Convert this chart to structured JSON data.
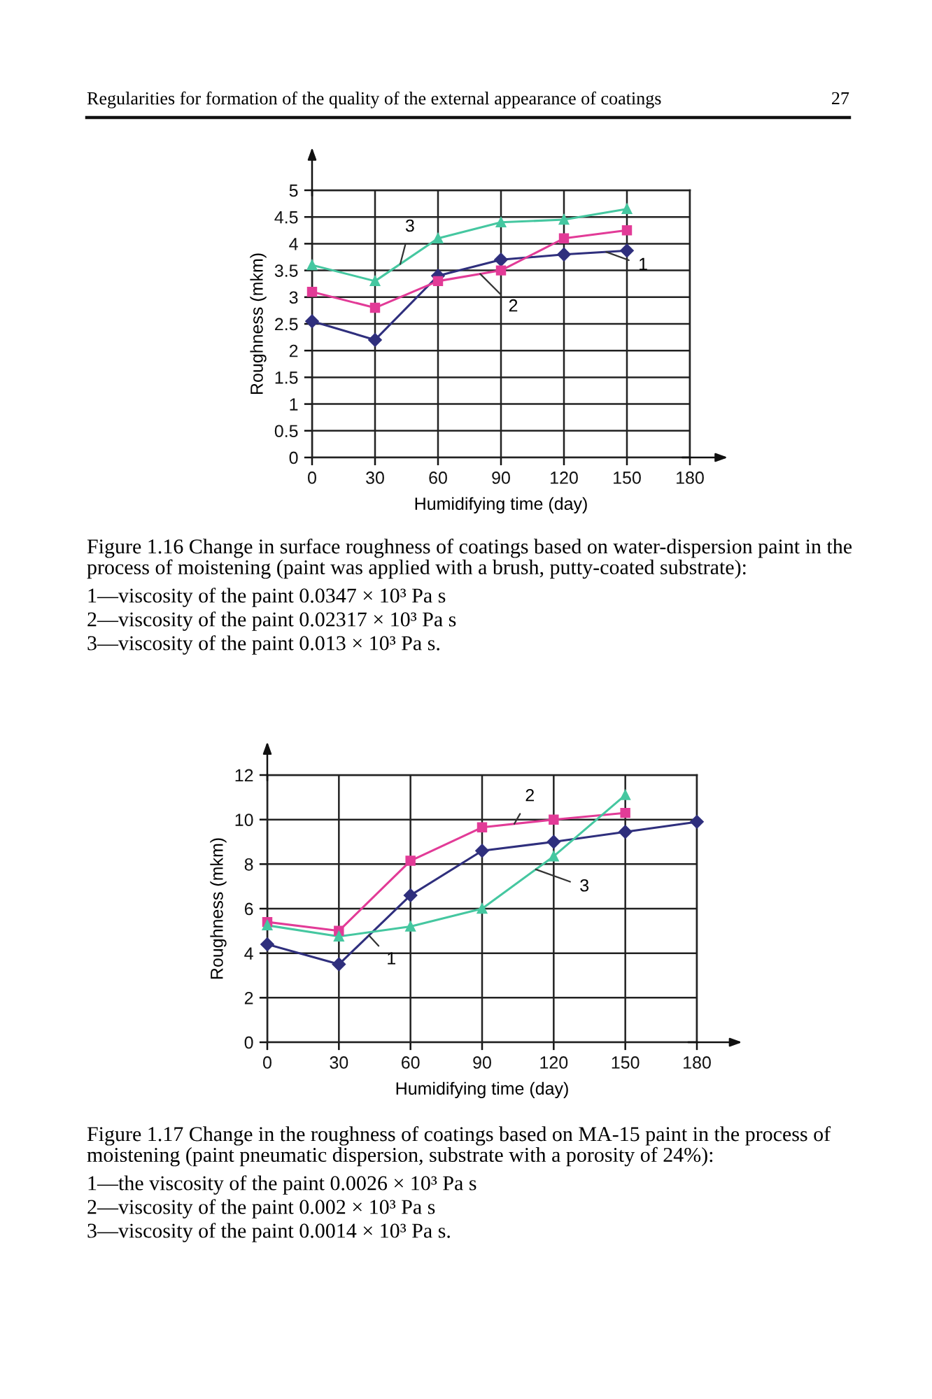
{
  "chart_data": [
    {
      "type": "line",
      "xlabel": "Humidifying time (day)",
      "ylabel": "Roughness (mkm)",
      "x": [
        0,
        30,
        60,
        90,
        120,
        150
      ],
      "series": [
        {
          "name": "1",
          "color": "#2f2f7d",
          "marker": "diamond",
          "values": [
            2.55,
            2.2,
            3.4,
            3.7,
            3.8,
            3.87
          ]
        },
        {
          "name": "2",
          "color": "#e23b97",
          "marker": "square",
          "values": [
            3.1,
            2.8,
            3.3,
            3.5,
            4.1,
            4.25
          ]
        },
        {
          "name": "3",
          "color": "#45c7a0",
          "marker": "triangle",
          "values": [
            3.6,
            3.3,
            4.1,
            4.4,
            4.45,
            4.65
          ]
        }
      ],
      "xlim": [
        0,
        180
      ],
      "ylim": [
        0,
        5
      ],
      "xticks": [
        0,
        30,
        60,
        90,
        120,
        150,
        180
      ],
      "yticks": [
        0,
        0.5,
        1,
        1.5,
        2,
        2.5,
        3,
        3.5,
        4,
        4.5,
        5
      ],
      "grid": true,
      "annotations": [
        "Regularities for formation of the quality of the external appearance of coatings",
        "27",
        "Figure 1.16 Change in surface roughness of coatings based on water-dispersion paint in the process of moistening (paint was applied with a brush, putty-coated substrate):",
        "1—viscosity of the paint 0.0347 × 10³ Pa s",
        "2—viscosity of the paint 0.02317 × 10³ Pa s",
        "3—viscosity of the paint 0.013 × 10³ Pa s."
      ]
    },
    {
      "type": "line",
      "xlabel": "Humidifying time (day)",
      "ylabel": "Roughness (mkm)",
      "x": [
        0,
        30,
        60,
        90,
        120,
        150
      ],
      "series": [
        {
          "name": "1",
          "color": "#2f2f7d",
          "marker": "diamond",
          "x": [
            0,
            30,
            60,
            90,
            120,
            150,
            180
          ],
          "values": [
            4.4,
            3.5,
            6.6,
            8.6,
            9.0,
            9.45,
            9.9
          ]
        },
        {
          "name": "2",
          "color": "#e23b97",
          "marker": "square",
          "values": [
            5.4,
            5.0,
            8.15,
            9.65,
            10.0,
            10.3
          ]
        },
        {
          "name": "3",
          "color": "#45c7a0",
          "marker": "triangle",
          "values": [
            5.25,
            4.75,
            5.2,
            6.0,
            8.35,
            11.1
          ]
        }
      ],
      "xlim": [
        0,
        180
      ],
      "ylim": [
        0,
        12
      ],
      "xticks": [
        0,
        30,
        60,
        90,
        120,
        150,
        180
      ],
      "yticks": [
        0,
        2,
        4,
        6,
        8,
        10,
        12
      ],
      "grid": true,
      "annotations": [
        "Figure 1.17 Change in the roughness of coatings based on MA-15 paint in the process of moistening (paint pneumatic dispersion, substrate with a porosity of 24%):",
        "1—the viscosity of the paint 0.0026 × 10³ Pa s",
        "2—viscosity of the paint 0.002 × 10³ Pa s",
        "3—viscosity of the paint 0.0014 × 10³ Pa s."
      ]
    }
  ]
}
